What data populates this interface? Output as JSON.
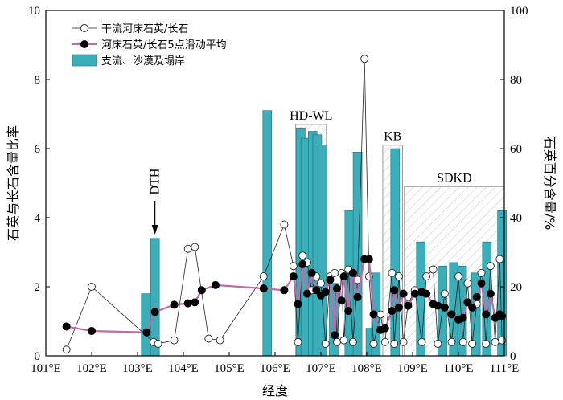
{
  "chart_data": {
    "type": "bar+line+scatter",
    "xlabel": "经度",
    "ylabel_left": "石英与长石含量比率",
    "ylabel_right": "石英百分含量/%",
    "xlim": [
      101,
      111
    ],
    "ylim_left": [
      0,
      10
    ],
    "ylim_right": [
      0,
      100
    ],
    "x_ticks": [
      {
        "v": 101,
        "label": "101°E"
      },
      {
        "v": 102,
        "label": "102°E"
      },
      {
        "v": 103,
        "label": "103°E"
      },
      {
        "v": 104,
        "label": "104°E"
      },
      {
        "v": 105,
        "label": "105°E"
      },
      {
        "v": 106,
        "label": "106°E"
      },
      {
        "v": 107,
        "label": "107°E"
      },
      {
        "v": 108,
        "label": "108°E"
      },
      {
        "v": 109,
        "label": "109°E"
      },
      {
        "v": 110,
        "label": "110°E"
      },
      {
        "v": 111,
        "label": "111°E"
      }
    ],
    "y_ticks_left": [
      "0",
      "2",
      "4",
      "6",
      "8",
      "10"
    ],
    "y_ticks_right": [
      "0",
      "20",
      "40",
      "60",
      "80",
      "100"
    ],
    "legend": [
      {
        "key": "raw",
        "label": "干流河床石英/长石"
      },
      {
        "key": "avg",
        "label": "河床石英/长石5点滑动平均"
      },
      {
        "key": "bars",
        "label": "支流、沙漠及塌岸"
      }
    ],
    "colors": {
      "bar_fill": "#3aafb9",
      "bar_stroke": "#1f6f76",
      "avg_line": "#c06aa8",
      "raw_line": "#222222",
      "region_box": "#9a9a9a"
    },
    "bars_percent": [
      {
        "x": 103.18,
        "v": 18
      },
      {
        "x": 103.38,
        "v": 34
      },
      {
        "x": 105.83,
        "v": 71
      },
      {
        "x": 106.56,
        "v": 66
      },
      {
        "x": 106.66,
        "v": 63
      },
      {
        "x": 106.82,
        "v": 65
      },
      {
        "x": 106.92,
        "v": 64
      },
      {
        "x": 107.03,
        "v": 61
      },
      {
        "x": 107.28,
        "v": 21
      },
      {
        "x": 107.62,
        "v": 42
      },
      {
        "x": 107.8,
        "v": 59
      },
      {
        "x": 108.08,
        "v": 8
      },
      {
        "x": 108.2,
        "v": 24
      },
      {
        "x": 108.62,
        "v": 60
      },
      {
        "x": 109.18,
        "v": 33
      },
      {
        "x": 109.65,
        "v": 26
      },
      {
        "x": 109.9,
        "v": 27
      },
      {
        "x": 110.08,
        "v": 26
      },
      {
        "x": 110.38,
        "v": 24
      },
      {
        "x": 110.62,
        "v": 33
      },
      {
        "x": 110.95,
        "v": 42
      }
    ],
    "raw_ratio": [
      {
        "x": 101.45,
        "y": 0.18
      },
      {
        "x": 102.0,
        "y": 2.0
      },
      {
        "x": 103.35,
        "y": 0.4
      },
      {
        "x": 103.45,
        "y": 0.35
      },
      {
        "x": 103.8,
        "y": 0.45
      },
      {
        "x": 104.1,
        "y": 3.1
      },
      {
        "x": 104.25,
        "y": 3.15
      },
      {
        "x": 104.55,
        "y": 0.5
      },
      {
        "x": 104.8,
        "y": 0.45
      },
      {
        "x": 105.75,
        "y": 2.3
      },
      {
        "x": 106.2,
        "y": 3.8
      },
      {
        "x": 106.4,
        "y": 2.6
      },
      {
        "x": 106.5,
        "y": 0.4
      },
      {
        "x": 106.6,
        "y": 2.9
      },
      {
        "x": 106.7,
        "y": 2.7
      },
      {
        "x": 106.8,
        "y": 1.9
      },
      {
        "x": 106.9,
        "y": 2.3
      },
      {
        "x": 107.0,
        "y": 2.1
      },
      {
        "x": 107.1,
        "y": 0.35
      },
      {
        "x": 107.2,
        "y": 2.3
      },
      {
        "x": 107.3,
        "y": 2.4
      },
      {
        "x": 107.35,
        "y": 0.4
      },
      {
        "x": 107.45,
        "y": 2.4
      },
      {
        "x": 107.5,
        "y": 0.45
      },
      {
        "x": 107.6,
        "y": 2.5
      },
      {
        "x": 107.7,
        "y": 0.4
      },
      {
        "x": 107.8,
        "y": 2.2
      },
      {
        "x": 107.95,
        "y": 8.6
      },
      {
        "x": 108.05,
        "y": 2.3
      },
      {
        "x": 108.15,
        "y": 0.35
      },
      {
        "x": 108.3,
        "y": 1.2
      },
      {
        "x": 108.4,
        "y": 0.4
      },
      {
        "x": 108.55,
        "y": 2.4
      },
      {
        "x": 108.6,
        "y": 0.35
      },
      {
        "x": 108.7,
        "y": 2.3
      },
      {
        "x": 108.8,
        "y": 0.4
      },
      {
        "x": 108.9,
        "y": 1.5
      },
      {
        "x": 109.05,
        "y": 1.9
      },
      {
        "x": 109.2,
        "y": 0.4
      },
      {
        "x": 109.3,
        "y": 2.3
      },
      {
        "x": 109.45,
        "y": 2.5
      },
      {
        "x": 109.55,
        "y": 0.35
      },
      {
        "x": 109.7,
        "y": 1.8
      },
      {
        "x": 109.85,
        "y": 0.4
      },
      {
        "x": 110.0,
        "y": 2.3
      },
      {
        "x": 110.1,
        "y": 0.4
      },
      {
        "x": 110.2,
        "y": 2.1
      },
      {
        "x": 110.3,
        "y": 0.35
      },
      {
        "x": 110.4,
        "y": 1.5
      },
      {
        "x": 110.5,
        "y": 2.4
      },
      {
        "x": 110.6,
        "y": 0.35
      },
      {
        "x": 110.7,
        "y": 2.6
      },
      {
        "x": 110.8,
        "y": 0.4
      },
      {
        "x": 110.9,
        "y": 2.8
      },
      {
        "x": 110.95,
        "y": 0.45
      }
    ],
    "avg_ratio": [
      {
        "x": 101.45,
        "y": 0.85
      },
      {
        "x": 102.0,
        "y": 0.72
      },
      {
        "x": 103.2,
        "y": 0.68
      },
      {
        "x": 103.38,
        "y": 1.27
      },
      {
        "x": 103.8,
        "y": 1.48
      },
      {
        "x": 104.1,
        "y": 1.52
      },
      {
        "x": 104.25,
        "y": 1.55
      },
      {
        "x": 104.4,
        "y": 1.9
      },
      {
        "x": 104.7,
        "y": 2.05
      },
      {
        "x": 105.75,
        "y": 1.95
      },
      {
        "x": 106.2,
        "y": 1.9
      },
      {
        "x": 106.4,
        "y": 2.3
      },
      {
        "x": 106.5,
        "y": 1.5
      },
      {
        "x": 106.6,
        "y": 2.65
      },
      {
        "x": 106.7,
        "y": 1.8
      },
      {
        "x": 106.8,
        "y": 2.4
      },
      {
        "x": 106.9,
        "y": 1.9
      },
      {
        "x": 107.0,
        "y": 1.75
      },
      {
        "x": 107.1,
        "y": 1.85
      },
      {
        "x": 107.2,
        "y": 2.2
      },
      {
        "x": 107.3,
        "y": 0.6
      },
      {
        "x": 107.35,
        "y": 1.95
      },
      {
        "x": 107.45,
        "y": 1.6
      },
      {
        "x": 107.5,
        "y": 2.3
      },
      {
        "x": 107.6,
        "y": 1.3
      },
      {
        "x": 107.7,
        "y": 2.4
      },
      {
        "x": 107.8,
        "y": 1.7
      },
      {
        "x": 107.95,
        "y": 2.8
      },
      {
        "x": 108.05,
        "y": 2.8
      },
      {
        "x": 108.15,
        "y": 1.2
      },
      {
        "x": 108.3,
        "y": 0.75
      },
      {
        "x": 108.4,
        "y": 0.8
      },
      {
        "x": 108.55,
        "y": 1.3
      },
      {
        "x": 108.6,
        "y": 1.9
      },
      {
        "x": 108.7,
        "y": 1.4
      },
      {
        "x": 108.8,
        "y": 1.8
      },
      {
        "x": 108.9,
        "y": 1.45
      },
      {
        "x": 109.05,
        "y": 1.8
      },
      {
        "x": 109.2,
        "y": 1.85
      },
      {
        "x": 109.3,
        "y": 1.8
      },
      {
        "x": 109.45,
        "y": 1.5
      },
      {
        "x": 109.55,
        "y": 1.45
      },
      {
        "x": 109.7,
        "y": 1.4
      },
      {
        "x": 109.85,
        "y": 1.2
      },
      {
        "x": 110.0,
        "y": 1.05
      },
      {
        "x": 110.1,
        "y": 1.1
      },
      {
        "x": 110.2,
        "y": 1.55
      },
      {
        "x": 110.3,
        "y": 1.4
      },
      {
        "x": 110.4,
        "y": 1.7
      },
      {
        "x": 110.5,
        "y": 2.1
      },
      {
        "x": 110.6,
        "y": 1.2
      },
      {
        "x": 110.7,
        "y": 1.8
      },
      {
        "x": 110.8,
        "y": 1.1
      },
      {
        "x": 110.9,
        "y": 1.2
      },
      {
        "x": 110.95,
        "y": 1.15
      }
    ],
    "regions": [
      {
        "label": "HD-WL",
        "x0": 106.45,
        "x1": 107.12,
        "top_pct": 67
      },
      {
        "label": "KB",
        "x0": 108.35,
        "x1": 108.78,
        "top_pct": 61
      },
      {
        "label": "SDKD",
        "x0": 108.82,
        "x1": 111.0,
        "top_pct": 49
      }
    ],
    "annotation": {
      "label": "DTH",
      "x": 103.38
    }
  }
}
